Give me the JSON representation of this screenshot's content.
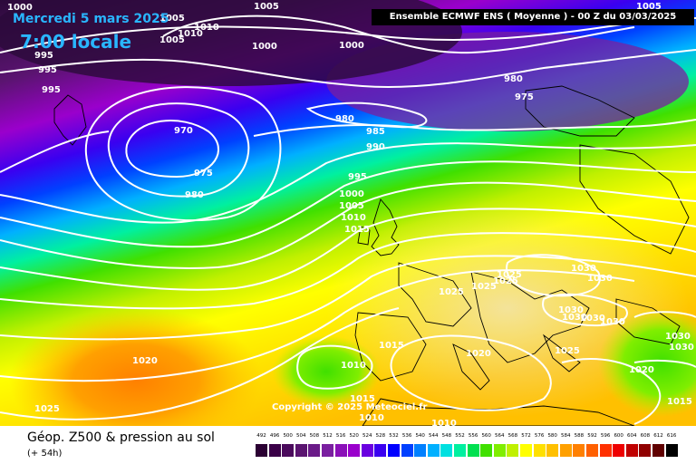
{
  "header": {
    "date": "Mercredi 5 mars 2025",
    "time": "7:00 locale",
    "model": "Ensemble ECMWF ENS  ( Moyenne )  - 00 Z du 03/03/2025"
  },
  "copyright": "Copyright © 2025 Meteociel.fr",
  "footer": {
    "title": "Géop. Z500 & pression au sol",
    "subtitle": "(+ 54h)"
  },
  "legend": [
    {
      "label": "492",
      "color": "#2b0033"
    },
    {
      "label": "496",
      "color": "#3a0048"
    },
    {
      "label": "500",
      "color": "#4a0a5c"
    },
    {
      "label": "504",
      "color": "#5a1470"
    },
    {
      "label": "508",
      "color": "#6a1a88"
    },
    {
      "label": "512",
      "color": "#7a1fa0"
    },
    {
      "label": "516",
      "color": "#8a10b8"
    },
    {
      "label": "520",
      "color": "#9a00cc"
    },
    {
      "label": "524",
      "color": "#6a00e0"
    },
    {
      "label": "528",
      "color": "#3a00f0"
    },
    {
      "label": "532",
      "color": "#0000ff"
    },
    {
      "label": "536",
      "color": "#0040ff"
    },
    {
      "label": "540",
      "color": "#0080ff"
    },
    {
      "label": "544",
      "color": "#00b0ff"
    },
    {
      "label": "548",
      "color": "#00e0e0"
    },
    {
      "label": "552",
      "color": "#00f0a0"
    },
    {
      "label": "556",
      "color": "#00e050"
    },
    {
      "label": "560",
      "color": "#40e000"
    },
    {
      "label": "564",
      "color": "#80ee00"
    },
    {
      "label": "568",
      "color": "#c0f000"
    },
    {
      "label": "572",
      "color": "#ffff00"
    },
    {
      "label": "576",
      "color": "#ffe000"
    },
    {
      "label": "580",
      "color": "#ffc000"
    },
    {
      "label": "584",
      "color": "#ffa000"
    },
    {
      "label": "588",
      "color": "#ff8000"
    },
    {
      "label": "592",
      "color": "#ff6000"
    },
    {
      "label": "596",
      "color": "#ff3000"
    },
    {
      "label": "600",
      "color": "#ee0000"
    },
    {
      "label": "604",
      "color": "#c00000"
    },
    {
      "label": "608",
      "color": "#900000"
    },
    {
      "label": "612",
      "color": "#600000"
    },
    {
      "label": "616",
      "color": "#000000"
    }
  ],
  "isobars": [
    {
      "id": "l1000a",
      "label": "1000"
    },
    {
      "id": "l1005a",
      "label": "1005"
    },
    {
      "id": "l1010a",
      "label": "1010"
    },
    {
      "id": "l1010b",
      "label": "1010"
    },
    {
      "id": "l1005b",
      "label": "1005"
    },
    {
      "id": "l1000b",
      "label": "1000"
    },
    {
      "id": "l995a",
      "label": "995"
    },
    {
      "id": "l995b",
      "label": "995"
    },
    {
      "id": "l995c",
      "label": "995"
    },
    {
      "id": "l1000c",
      "label": "1000"
    },
    {
      "id": "l980a",
      "label": "980"
    },
    {
      "id": "l975a",
      "label": "975"
    },
    {
      "id": "l1005c",
      "label": "1005"
    },
    {
      "id": "l970",
      "label": "970"
    },
    {
      "id": "l975b",
      "label": "975"
    },
    {
      "id": "l980b",
      "label": "980"
    },
    {
      "id": "l980c",
      "label": "980"
    },
    {
      "id": "l985",
      "label": "985"
    },
    {
      "id": "l990",
      "label": "990"
    },
    {
      "id": "l995d",
      "label": "995"
    },
    {
      "id": "l1000d",
      "label": "1000"
    },
    {
      "id": "l1005d",
      "label": "1005"
    },
    {
      "id": "l1010c",
      "label": "1010"
    },
    {
      "id": "l1015a",
      "label": "1015"
    },
    {
      "id": "l1025a",
      "label": "1025"
    },
    {
      "id": "l1025b",
      "label": "1025"
    },
    {
      "id": "l1025c",
      "label": "1025"
    },
    {
      "id": "l1025d",
      "label": "1025"
    },
    {
      "id": "l1030a",
      "label": "1030"
    },
    {
      "id": "l1030b",
      "label": "1030"
    },
    {
      "id": "l1030c",
      "label": "1030"
    },
    {
      "id": "l1030d",
      "label": "1030"
    },
    {
      "id": "l1030e",
      "label": "1030"
    },
    {
      "id": "l1030f",
      "label": "1030"
    },
    {
      "id": "l1025e",
      "label": "1025"
    },
    {
      "id": "l1030g",
      "label": "1030"
    },
    {
      "id": "l1015b",
      "label": "1015"
    },
    {
      "id": "l1020a",
      "label": "1020"
    },
    {
      "id": "l1020b",
      "label": "1020"
    },
    {
      "id": "l1010d",
      "label": "1010"
    },
    {
      "id": "l1015c",
      "label": "1015"
    },
    {
      "id": "l1010e",
      "label": "1010"
    },
    {
      "id": "l1010f",
      "label": "1010"
    },
    {
      "id": "l1020c",
      "label": "1020"
    },
    {
      "id": "l1025f",
      "label": "1025"
    },
    {
      "id": "l1005e",
      "label": "1005"
    },
    {
      "id": "l1015d",
      "label": "1015"
    },
    {
      "id": "l1030h",
      "label": "1030"
    }
  ]
}
